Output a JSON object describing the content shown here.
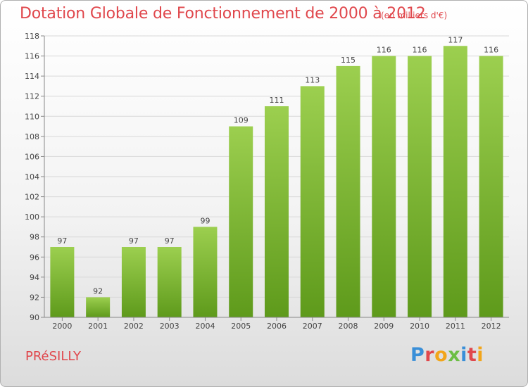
{
  "title": "Dotation Globale de Fonctionnement de 2000 à 2012",
  "unit": "(en milliers d'€)",
  "commune": "PRéSILLY",
  "logo": {
    "letters": [
      "P",
      "r",
      "o",
      "x",
      "i",
      "t",
      "i"
    ],
    "colors": [
      "#3a8fd8",
      "#e0474c",
      "#f2a51a",
      "#6cbe45",
      "#3a8fd8",
      "#e0474c",
      "#f2a51a"
    ]
  },
  "chart_data": {
    "type": "bar",
    "categories": [
      "2000",
      "2001",
      "2002",
      "2003",
      "2004",
      "2005",
      "2006",
      "2007",
      "2008",
      "2009",
      "2010",
      "2011",
      "2012"
    ],
    "values": [
      97,
      92,
      97,
      97,
      99,
      109,
      111,
      113,
      115,
      116,
      116,
      117,
      116
    ],
    "ylim": [
      90,
      118
    ],
    "yticks": [
      90,
      92,
      94,
      96,
      98,
      100,
      102,
      104,
      106,
      108,
      110,
      112,
      114,
      116,
      118
    ],
    "grid": true,
    "bar_color": "#7dba3c"
  }
}
